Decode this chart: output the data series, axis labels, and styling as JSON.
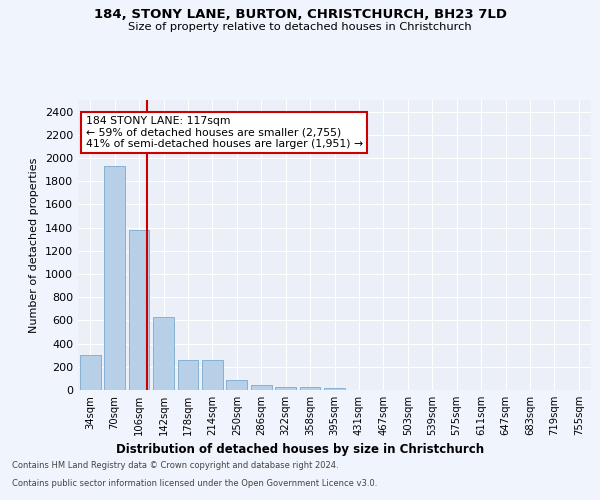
{
  "title_line1": "184, STONY LANE, BURTON, CHRISTCHURCH, BH23 7LD",
  "title_line2": "Size of property relative to detached houses in Christchurch",
  "xlabel": "Distribution of detached houses by size in Christchurch",
  "ylabel": "Number of detached properties",
  "categories": [
    "34sqm",
    "70sqm",
    "106sqm",
    "142sqm",
    "178sqm",
    "214sqm",
    "250sqm",
    "286sqm",
    "322sqm",
    "358sqm",
    "395sqm",
    "431sqm",
    "467sqm",
    "503sqm",
    "539sqm",
    "575sqm",
    "611sqm",
    "647sqm",
    "683sqm",
    "719sqm",
    "755sqm"
  ],
  "values": [
    305,
    1930,
    1380,
    630,
    260,
    260,
    90,
    45,
    25,
    25,
    15,
    0,
    0,
    0,
    0,
    0,
    0,
    0,
    0,
    0,
    0
  ],
  "bar_color": "#b8cfe8",
  "bar_edge_color": "#7aaad0",
  "vline_color": "#cc0000",
  "vline_pos": 2.33,
  "annotation_line1": "184 STONY LANE: 117sqm",
  "annotation_line2": "← 59% of detached houses are smaller (2,755)",
  "annotation_line3": "41% of semi-detached houses are larger (1,951) →",
  "annotation_box_color": "#ffffff",
  "annotation_box_edge": "#cc0000",
  "ylim": [
    0,
    2500
  ],
  "yticks": [
    0,
    200,
    400,
    600,
    800,
    1000,
    1200,
    1400,
    1600,
    1800,
    2000,
    2200,
    2400
  ],
  "footer_line1": "Contains HM Land Registry data © Crown copyright and database right 2024.",
  "footer_line2": "Contains public sector information licensed under the Open Government Licence v3.0.",
  "bg_color": "#f0f4fc",
  "plot_bg_color": "#eaeff8"
}
